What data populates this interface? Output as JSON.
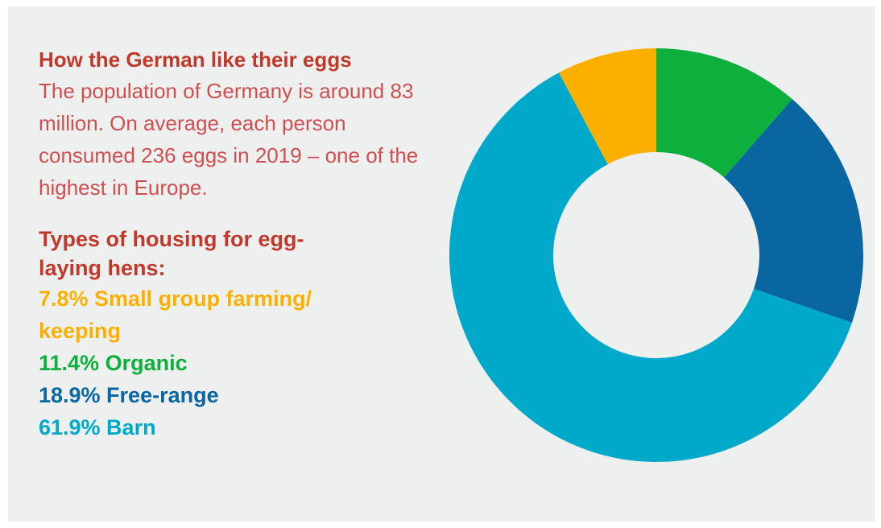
{
  "header": {
    "title": "How the German like their eggs",
    "intro": "The population of Germany is around 83 million. On average, each person consumed 236 eggs in 2019 – one of the highest in Europe."
  },
  "legend": {
    "title": "Types of housing for egg-laying hens:",
    "items": [
      {
        "label": "7.8% Small group farming/ keeping",
        "color": "#fbb000"
      },
      {
        "label": "11.4% Organic",
        "color": "#0db03c"
      },
      {
        "label": "18.9% Free-range",
        "color": "#0a66a0"
      },
      {
        "label": "61.9% Barn",
        "color": "#00a9c9"
      }
    ]
  },
  "chart_data": {
    "type": "pie",
    "donut": true,
    "categories": [
      "Organic",
      "Free-range",
      "Barn",
      "Small group farming/ keeping"
    ],
    "values": [
      11.4,
      18.9,
      61.9,
      7.8
    ],
    "colors": [
      "#0db03c",
      "#0a66a0",
      "#00a9c9",
      "#fbb000"
    ],
    "start_angle_deg": 0,
    "direction": "clockwise"
  }
}
